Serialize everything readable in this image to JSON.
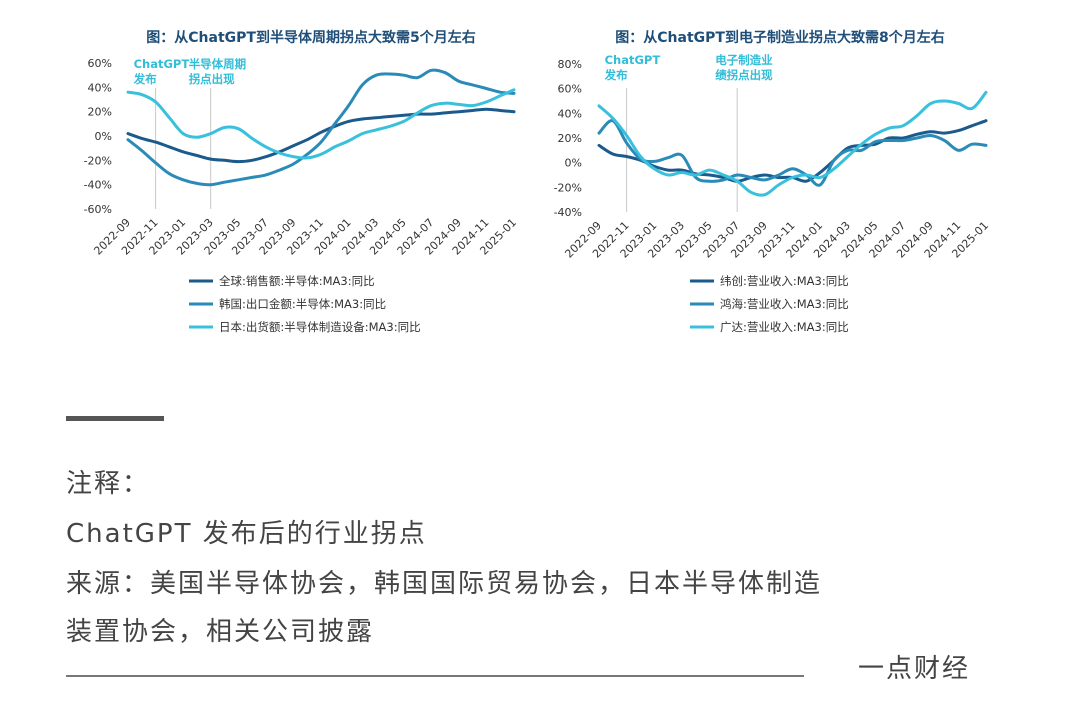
{
  "chart_data": [
    {
      "type": "line",
      "title": "图：从ChatGPT到半导体周期拐点大致需5个月左右",
      "categories": [
        "2022-09",
        "2022-10",
        "2022-11",
        "2022-12",
        "2023-01",
        "2023-02",
        "2023-03",
        "2023-04",
        "2023-05",
        "2023-06",
        "2023-07",
        "2023-08",
        "2023-09",
        "2023-10",
        "2023-11",
        "2023-12",
        "2024-01",
        "2024-02",
        "2024-03",
        "2024-04",
        "2024-05",
        "2024-06",
        "2024-07",
        "2024-08",
        "2024-09",
        "2024-10",
        "2024-11",
        "2024-12",
        "2025-01"
      ],
      "tick_labels": [
        "2022-09",
        "2022-11",
        "2023-01",
        "2023-03",
        "2023-05",
        "2023-07",
        "2023-09",
        "2023-11",
        "2024-01",
        "2024-03",
        "2024-05",
        "2024-07",
        "2024-09",
        "2024-11",
        "2025-01"
      ],
      "y_tick_labels": [
        "60%",
        "40%",
        "20%",
        "0%",
        "-20%",
        "-40%",
        "-60%"
      ],
      "ylim": [
        -60,
        60
      ],
      "yticks": [
        60,
        40,
        20,
        0,
        -20,
        -40,
        -60
      ],
      "xlabel": "",
      "ylabel": "",
      "series": [
        {
          "name": "全球:销售额:半导体:MA3:同比",
          "color": "#1a5a8c",
          "values": [
            2,
            -2,
            -5,
            -9,
            -13,
            -16,
            -19,
            -20,
            -21,
            -20,
            -17,
            -13,
            -8,
            -3,
            3,
            8,
            12,
            14,
            15,
            16,
            17,
            18,
            18,
            19,
            20,
            21,
            22,
            21,
            20
          ]
        },
        {
          "name": "韩国:出口金额:半导体:MA3:同比",
          "color": "#2a8ab8",
          "values": [
            -3,
            -12,
            -22,
            -31,
            -36,
            -39,
            -40,
            -38,
            -36,
            -34,
            -32,
            -28,
            -23,
            -15,
            -5,
            10,
            25,
            42,
            50,
            51,
            50,
            48,
            54,
            52,
            45,
            42,
            39,
            36,
            35
          ]
        },
        {
          "name": "日本:出货额:半导体制造设备:MA3:同比",
          "color": "#38c0dc",
          "values": [
            36,
            34,
            28,
            15,
            2,
            -1,
            2,
            7,
            6,
            -2,
            -9,
            -14,
            -17,
            -18,
            -15,
            -9,
            -4,
            2,
            5,
            8,
            12,
            19,
            25,
            27,
            26,
            25,
            28,
            33,
            38
          ]
        }
      ],
      "annotations": [
        {
          "lines": [
            "ChatGPT",
            "发布"
          ],
          "at": "2022-11"
        },
        {
          "lines": [
            "半导体周期",
            "拐点出现"
          ],
          "at": "2023-03"
        }
      ]
    },
    {
      "type": "line",
      "title": "图：从ChatGPT到电子制造业拐点大致需8个月左右",
      "categories": [
        "2022-09",
        "2022-10",
        "2022-11",
        "2022-12",
        "2023-01",
        "2023-02",
        "2023-03",
        "2023-04",
        "2023-05",
        "2023-06",
        "2023-07",
        "2023-08",
        "2023-09",
        "2023-10",
        "2023-11",
        "2023-12",
        "2024-01",
        "2024-02",
        "2024-03",
        "2024-04",
        "2024-05",
        "2024-06",
        "2024-07",
        "2024-08",
        "2024-09",
        "2024-10",
        "2024-11",
        "2024-12",
        "2025-01"
      ],
      "tick_labels": [
        "2022-09",
        "2022-11",
        "2023-01",
        "2023-03",
        "2023-05",
        "2023-07",
        "2023-09",
        "2023-11",
        "2024-01",
        "2024-03",
        "2024-05",
        "2024-07",
        "2024-09",
        "2024-11",
        "2025-01"
      ],
      "y_tick_labels": [
        "80%",
        "60%",
        "40%",
        "20%",
        "0%",
        "-20%",
        "-40%"
      ],
      "ylim": [
        -40,
        80
      ],
      "yticks": [
        80,
        60,
        40,
        20,
        0,
        -20,
        -40
      ],
      "xlabel": "",
      "ylabel": "",
      "series": [
        {
          "name": "纬创:营业收入:MA3:同比",
          "color": "#1a5a8c",
          "values": [
            14,
            7,
            5,
            2,
            -3,
            -6,
            -6,
            -9,
            -10,
            -12,
            -15,
            -12,
            -10,
            -12,
            -12,
            -15,
            -8,
            2,
            12,
            14,
            15,
            20,
            20,
            23,
            25,
            24,
            26,
            30,
            34
          ]
        },
        {
          "name": "鸿海:营业收入:MA3:同比",
          "color": "#2a8ab8",
          "values": [
            24,
            34,
            16,
            3,
            1,
            4,
            6,
            -12,
            -15,
            -14,
            -10,
            -12,
            -14,
            -10,
            -5,
            -10,
            -18,
            2,
            10,
            10,
            17,
            18,
            18,
            20,
            22,
            18,
            10,
            15,
            14
          ]
        },
        {
          "name": "广达:营业收入:MA3:同比",
          "color": "#38c0dc",
          "values": [
            46,
            36,
            22,
            5,
            -5,
            -10,
            -8,
            -10,
            -6,
            -10,
            -15,
            -24,
            -26,
            -18,
            -12,
            -10,
            -12,
            -5,
            5,
            15,
            23,
            28,
            30,
            38,
            48,
            50,
            48,
            44,
            57
          ]
        }
      ],
      "annotations": [
        {
          "lines": [
            "ChatGPT",
            "发布"
          ],
          "at": "2022-11"
        },
        {
          "lines": [
            "电子制造业",
            "绩拐点出现"
          ],
          "at": "2023-07"
        }
      ]
    }
  ],
  "notes": {
    "heading": "注释：",
    "line1": "ChatGPT 发布后的行业拐点",
    "line2": "来源：美国半导体协会，韩国国际贸易协会，日本半导体制造",
    "line3": "装置协会，相关公司披露"
  },
  "brand": "一点财经"
}
